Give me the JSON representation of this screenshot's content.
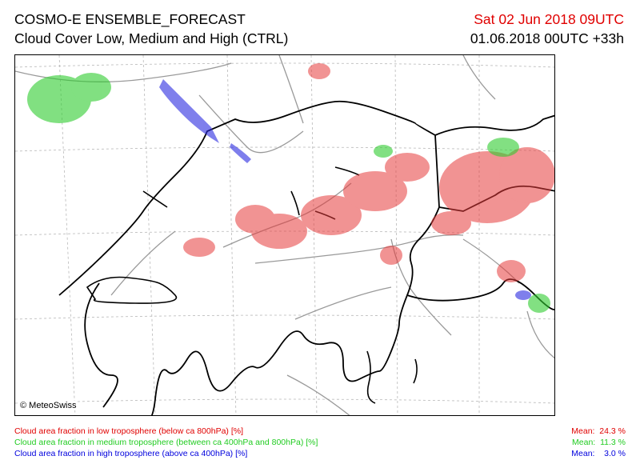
{
  "header": {
    "title": "COSMO-E ENSEMBLE_FORECAST",
    "subtitle": "Cloud Cover Low, Medium and High (CTRL)",
    "valid_time": "Sat 02 Jun 2018 09UTC",
    "run_time": "01.06.2018 00UTC +33h"
  },
  "map": {
    "copyright": "© MeteoSwiss"
  },
  "legend": [
    {
      "label": "Cloud area fraction in low troposphere (below ca 800hPa) [%]",
      "mean_label": "Mean:",
      "mean_value": "24.3 %",
      "color": "#e00000"
    },
    {
      "label": "Cloud area fraction in medium troposphere (between ca 400hPa and 800hPa) [%]",
      "mean_label": "Mean:",
      "mean_value": "11.3 %",
      "color": "#22cc22"
    },
    {
      "label": "Cloud area fraction in high troposphere (above ca 400hPa) [%]",
      "mean_label": "Mean:",
      "mean_value": "3.0 %",
      "color": "#0000dd"
    }
  ]
}
